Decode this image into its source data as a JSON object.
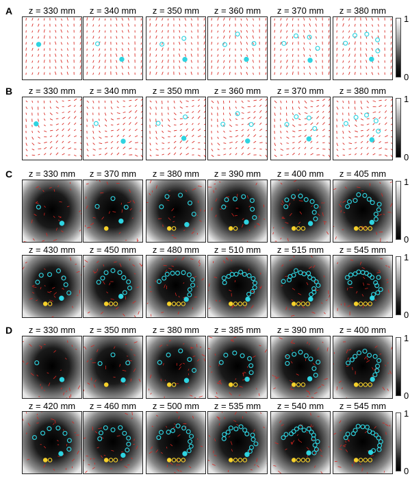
{
  "colors": {
    "arrow": "#d9241e",
    "cyan": "#2fd3e0",
    "yellow": "#f5d02a",
    "frame": "#222222"
  },
  "colorbar_ticks": {
    "max": "1",
    "min": "0"
  },
  "panels": [
    {
      "letter": "A",
      "style": "vector",
      "rows": [
        [
          "z = 330 mm",
          "z = 340 mm",
          "z = 350 mm",
          "z = 360 mm",
          "z = 370 mm",
          "z = 380 mm"
        ]
      ]
    },
    {
      "letter": "B",
      "style": "vector",
      "rows": [
        [
          "z = 330 mm",
          "z = 340 mm",
          "z = 350 mm",
          "z = 360 mm",
          "z = 370 mm",
          "z = 380 mm"
        ]
      ]
    },
    {
      "letter": "C",
      "style": "heat",
      "rows": [
        [
          "z = 330 mm",
          "z = 370 mm",
          "z = 380 mm",
          "z = 390 mm",
          "z = 400 mm",
          "z = 405 mm"
        ],
        [
          "z = 430 mm",
          "z = 450 mm",
          "z = 480 mm",
          "z = 510 mm",
          "z = 515 mm",
          "z = 545 mm"
        ]
      ]
    },
    {
      "letter": "D",
      "style": "heat",
      "rows": [
        [
          "z = 330 mm",
          "z = 350 mm",
          "z = 380 mm",
          "z = 385 mm",
          "z = 390 mm",
          "z = 400 mm"
        ],
        [
          "z = 420 mm",
          "z = 460 mm",
          "z = 500 mm",
          "z = 535 mm",
          "z = 540 mm",
          "z = 545 mm"
        ]
      ]
    }
  ]
}
